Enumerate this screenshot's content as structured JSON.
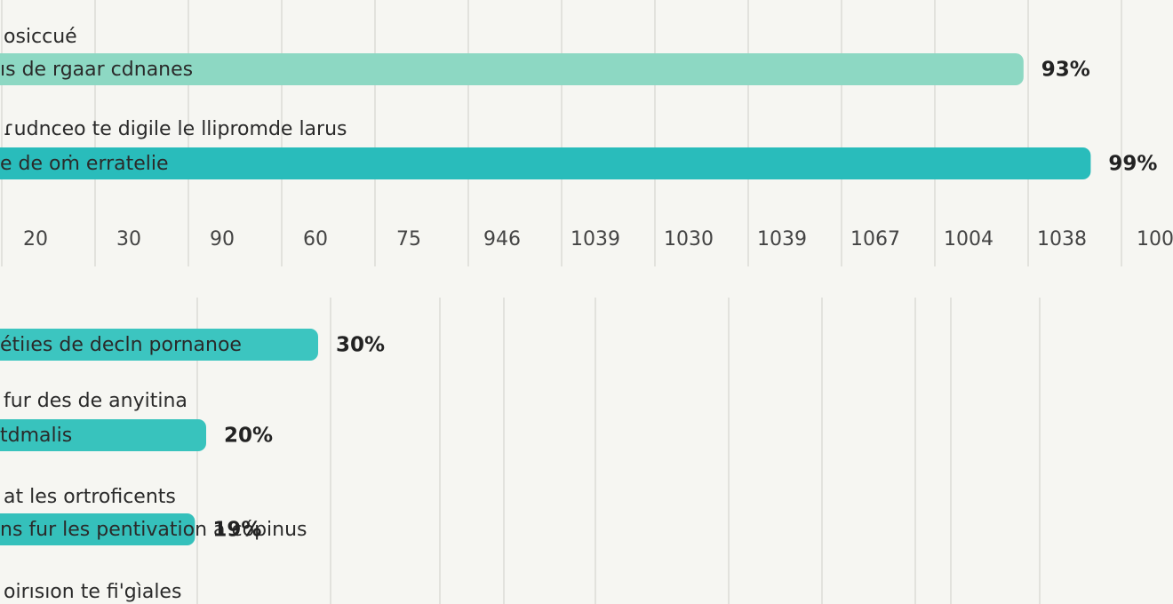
{
  "chart_data": [
    {
      "type": "hbar",
      "labels": [
        "osiccué",
        "ɾudnceo te digile le llipromde larus"
      ],
      "bar_texts": [
        "ıs de rgaar cdnanes",
        "e de oṁ erratelie"
      ],
      "values": [
        93,
        99
      ],
      "value_labels": [
        "93%",
        "99%"
      ],
      "colors": [
        "#8dd8c3",
        "#29bcbb"
      ],
      "xlim": [
        0,
        100
      ],
      "x_axis_labels": [
        "20",
        "30",
        "90",
        "60",
        "75",
        "946",
        "1039",
        "1030",
        "1039",
        "1067",
        "1004",
        "1038",
        "100"
      ]
    },
    {
      "type": "hbar",
      "labels": [
        null,
        "fur des de anyitina",
        "at les ortroficents",
        "oirısıon te fi'gìales"
      ],
      "bar_texts": [
        "étiıes de decln pornanoe",
        "tdmalis",
        "ns fur les pentivation a cópinus",
        null
      ],
      "values": [
        30,
        20,
        19,
        null
      ],
      "value_labels": [
        "30%",
        "20%",
        "19%",
        null
      ],
      "colors": [
        "#3cc5c0",
        "#38c3bd",
        "#35c0bb",
        "#35c0bb"
      ],
      "xlim": [
        0,
        100
      ]
    }
  ]
}
